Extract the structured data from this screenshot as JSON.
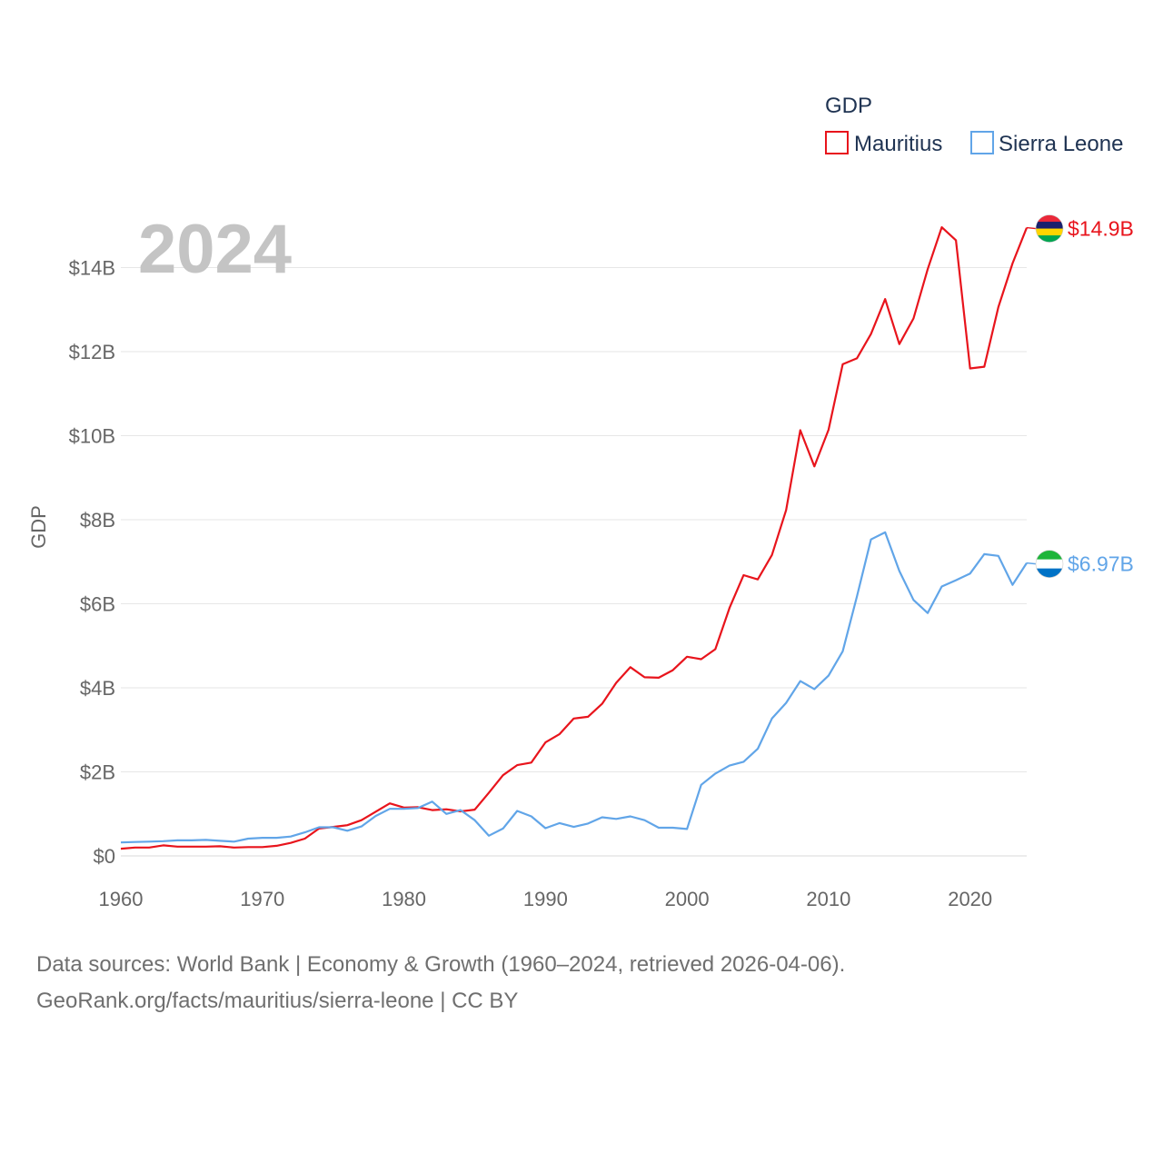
{
  "chart_data": {
    "type": "line",
    "title": "GDP",
    "year_label": "2024",
    "ylabel": "GDP",
    "xlabel": "",
    "xlim": [
      1960,
      2024
    ],
    "ylim": [
      0,
      15500000000
    ],
    "x_ticks": [
      "1960",
      "1970",
      "1980",
      "1990",
      "2000",
      "2010",
      "2020"
    ],
    "y_ticks": [
      {
        "value": 0,
        "label": "$0"
      },
      {
        "value": 2000000000,
        "label": "$2B"
      },
      {
        "value": 4000000000,
        "label": "$4B"
      },
      {
        "value": 6000000000,
        "label": "$6B"
      },
      {
        "value": 8000000000,
        "label": "$8B"
      },
      {
        "value": 10000000000,
        "label": "$10B"
      },
      {
        "value": 12000000000,
        "label": "$12B"
      },
      {
        "value": 14000000000,
        "label": "$14B"
      }
    ],
    "grid": true,
    "legend_position": "top-right",
    "series": [
      {
        "name": "Mauritius",
        "color": "#e8141c",
        "end_label": "$14.9B",
        "flag": "mauritius-flag",
        "flag_colors": [
          "#ea2839",
          "#1a206d",
          "#ffd500",
          "#00a551"
        ],
        "x": [
          1960,
          1961,
          1962,
          1963,
          1964,
          1965,
          1966,
          1967,
          1968,
          1969,
          1970,
          1971,
          1972,
          1973,
          1974,
          1975,
          1976,
          1977,
          1978,
          1979,
          1980,
          1981,
          1982,
          1983,
          1984,
          1985,
          1986,
          1987,
          1988,
          1989,
          1990,
          1991,
          1992,
          1993,
          1994,
          1995,
          1996,
          1997,
          1998,
          1999,
          2000,
          2001,
          2002,
          2003,
          2004,
          2005,
          2006,
          2007,
          2008,
          2009,
          2010,
          2011,
          2012,
          2013,
          2014,
          2015,
          2016,
          2017,
          2018,
          2019,
          2020,
          2021,
          2022,
          2023,
          2024
        ],
        "values": [
          170000000,
          200000000,
          200000000,
          250000000,
          220000000,
          220000000,
          220000000,
          230000000,
          200000000,
          210000000,
          210000000,
          240000000,
          310000000,
          410000000,
          650000000,
          690000000,
          730000000,
          850000000,
          1050000000,
          1250000000,
          1150000000,
          1160000000,
          1090000000,
          1110000000,
          1060000000,
          1100000000,
          1500000000,
          1920000000,
          2160000000,
          2220000000,
          2700000000,
          2900000000,
          3270000000,
          3310000000,
          3620000000,
          4120000000,
          4490000000,
          4250000000,
          4240000000,
          4420000000,
          4740000000,
          4680000000,
          4920000000,
          5900000000,
          6680000000,
          6580000000,
          7160000000,
          8230000000,
          10130000000,
          9270000000,
          10140000000,
          11700000000,
          11840000000,
          12420000000,
          13250000000,
          12180000000,
          12790000000,
          13960000000,
          14960000000,
          14650000000,
          11600000000,
          11640000000,
          13060000000,
          14100000000,
          14950000000
        ]
      },
      {
        "name": "Sierra Leone",
        "color": "#61a5e8",
        "end_label": "$6.97B",
        "flag": "sierra-leone-flag",
        "flag_colors": [
          "#1eb53a",
          "#ffffff",
          "#0072c6"
        ],
        "x": [
          1960,
          1961,
          1962,
          1963,
          1964,
          1965,
          1966,
          1967,
          1968,
          1969,
          1970,
          1971,
          1972,
          1973,
          1974,
          1975,
          1976,
          1977,
          1978,
          1979,
          1980,
          1981,
          1982,
          1983,
          1984,
          1985,
          1986,
          1987,
          1988,
          1989,
          1990,
          1991,
          1992,
          1993,
          1994,
          1995,
          1996,
          1997,
          1998,
          1999,
          2000,
          2001,
          2002,
          2003,
          2004,
          2005,
          2006,
          2007,
          2008,
          2009,
          2010,
          2011,
          2012,
          2013,
          2014,
          2015,
          2016,
          2017,
          2018,
          2019,
          2020,
          2021,
          2022,
          2023,
          2024
        ],
        "values": [
          320000000,
          330000000,
          340000000,
          350000000,
          370000000,
          370000000,
          380000000,
          360000000,
          340000000,
          410000000,
          430000000,
          430000000,
          460000000,
          560000000,
          680000000,
          680000000,
          600000000,
          700000000,
          950000000,
          1120000000,
          1120000000,
          1140000000,
          1290000000,
          1000000000,
          1090000000,
          850000000,
          480000000,
          650000000,
          1070000000,
          940000000,
          660000000,
          780000000,
          690000000,
          770000000,
          920000000,
          880000000,
          940000000,
          850000000,
          670000000,
          670000000,
          640000000,
          1690000000,
          1960000000,
          2150000000,
          2240000000,
          2550000000,
          3270000000,
          3640000000,
          4160000000,
          3970000000,
          4290000000,
          4870000000,
          6170000000,
          7530000000,
          7700000000,
          6780000000,
          6090000000,
          5780000000,
          6410000000,
          6560000000,
          6720000000,
          7180000000,
          7140000000,
          6450000000,
          6970000000
        ]
      }
    ]
  },
  "source": {
    "line1": "Data sources: World Bank | Economy & Growth (1960–2024, retrieved 2026-04-06).",
    "line2": "GeoRank.org/facts/mauritius/sierra-leone | CC BY"
  }
}
